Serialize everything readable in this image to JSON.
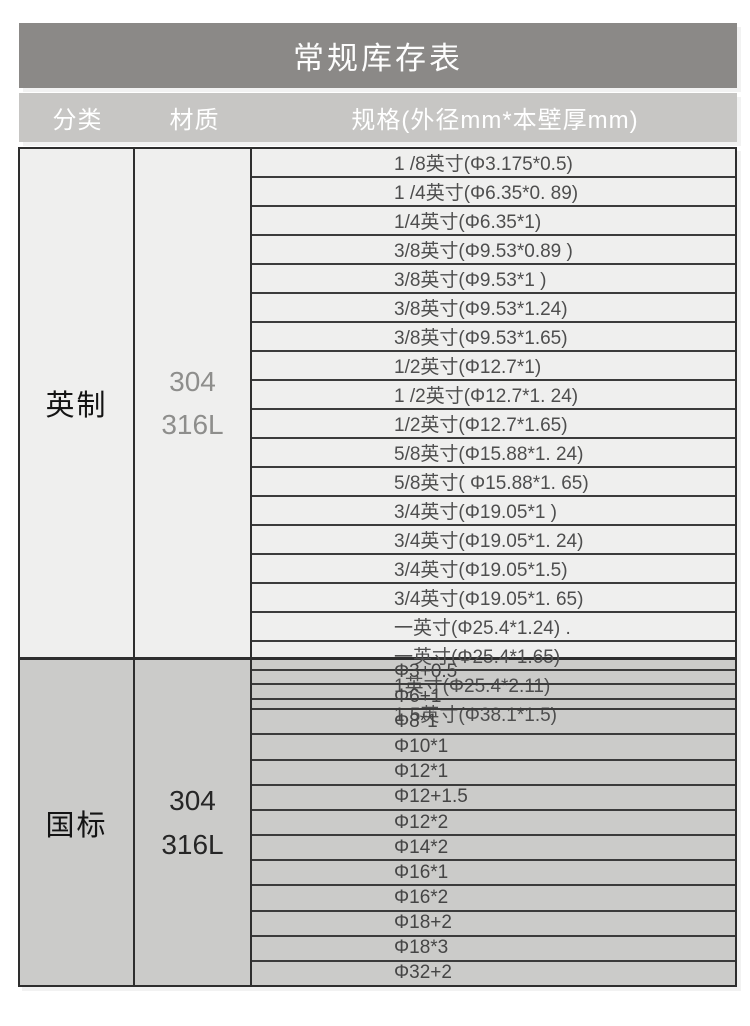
{
  "chart_data": {
    "type": "table",
    "title": "常规库存表",
    "columns": {
      "category": "分类",
      "material": "材质",
      "spec": "规格(外径mm*本壁厚mm)"
    },
    "sections": [
      {
        "category": "英制",
        "materials": [
          "304",
          "316L"
        ],
        "specs": [
          "1 /8英寸(Φ3.175*0.5)",
          "1 /4英寸(Φ6.35*0. 89)",
          "1/4英寸(Φ6.35*1)",
          "3/8英寸(Φ9.53*0.89 )",
          "3/8英寸(Φ9.53*1 )",
          "3/8英寸(Φ9.53*1.24)",
          "3/8英寸(Φ9.53*1.65)",
          "1/2英寸(Φ12.7*1)",
          "1 /2英寸(Φ12.7*1. 24)",
          "1/2英寸(Φ12.7*1.65)",
          "5/8英寸(Φ15.88*1. 24)",
          "5/8英寸( Φ15.88*1. 65)",
          "3/4英寸(Φ19.05*1 )",
          "3/4英寸(Φ19.05*1. 24)",
          "3/4英寸(Φ19.05*1.5)",
          "3/4英寸(Φ19.05*1. 65)",
          "一英寸(Φ25.4*1.24) .",
          "一英寸(Φ25.4*1.65)",
          "1英寸(Φ25.4*2.11)",
          "1.5英寸(Φ38.1*1.5)"
        ]
      },
      {
        "category": "国标",
        "materials": [
          "304",
          "316L"
        ],
        "specs": [
          "Φ3+0.5",
          "Φ6+1",
          "Φ8*1",
          "Φ10*1",
          "Φ12*1",
          "Φ12+1.5",
          "Φ12*2",
          "Φ14*2",
          "Φ16*1",
          "Φ16*2",
          "Φ18+2",
          "Φ18*3",
          "Φ32+2"
        ]
      }
    ]
  },
  "colors": {
    "title_bar_bg": "#8b8987",
    "header_bar_bg": "#c7c6c4",
    "imperial_section_bg": "#efefee",
    "gb_section_bg": "#cbcbc9",
    "grid_border": "#2e2e2e",
    "header_text": "#ffffff"
  }
}
